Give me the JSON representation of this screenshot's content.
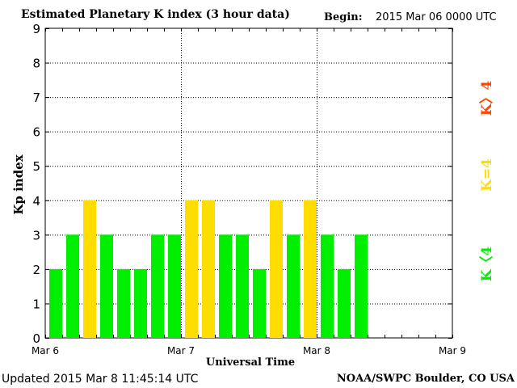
{
  "header": {
    "title": "Estimated Planetary K index (3 hour data)",
    "begin_label": "Begin:",
    "begin_value": "2015 Mar 06 0000 UTC"
  },
  "footer": {
    "updated": "Updated 2015 Mar  8 11:45:14 UTC",
    "credit": "NOAA/SWPC Boulder, CO USA"
  },
  "colors": {
    "below": "#00ee00",
    "equal": "#ffdd00",
    "above": "#ff4400"
  },
  "chart_data": {
    "type": "bar",
    "xlabel": "Universal Time",
    "ylabel": "Kp index",
    "ylim": [
      0,
      9
    ],
    "yticks": [
      "0",
      "1",
      "2",
      "3",
      "4",
      "5",
      "6",
      "7",
      "8",
      "9"
    ],
    "xticks": [
      "Mar 6",
      "Mar 7",
      "Mar 8",
      "Mar 9"
    ],
    "grid": true,
    "legend": [
      {
        "label": "K<4",
        "text": "K〈4",
        "color_key": "below"
      },
      {
        "label": "K=4",
        "text": "K=4",
        "color_key": "equal"
      },
      {
        "label": "K>4",
        "text": "K〉4",
        "color_key": "above"
      }
    ],
    "legend_position": "right",
    "values": [
      2,
      3,
      4,
      3,
      2,
      2,
      3,
      3,
      4,
      4,
      3,
      3,
      2,
      4,
      3,
      4,
      3,
      2,
      3
    ]
  }
}
